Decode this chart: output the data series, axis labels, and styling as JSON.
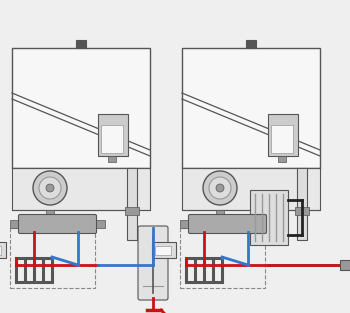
{
  "bg": "#efefef",
  "boiler_face": "#f7f7f7",
  "boiler_edge": "#555555",
  "wall_fill": "#e0e0e0",
  "shelf_fill": "#e8e8e8",
  "gray_dark": "#555555",
  "gray_mid": "#999999",
  "gray_light": "#cccccc",
  "gray_lighter": "#dddddd",
  "pipe_red": "#cc1111",
  "pipe_blue": "#3377cc",
  "pipe_dark": "#222222",
  "dashed_color": "#888888",
  "white": "#ffffff",
  "lw_main": 1.0,
  "lw_pipe": 2.0
}
